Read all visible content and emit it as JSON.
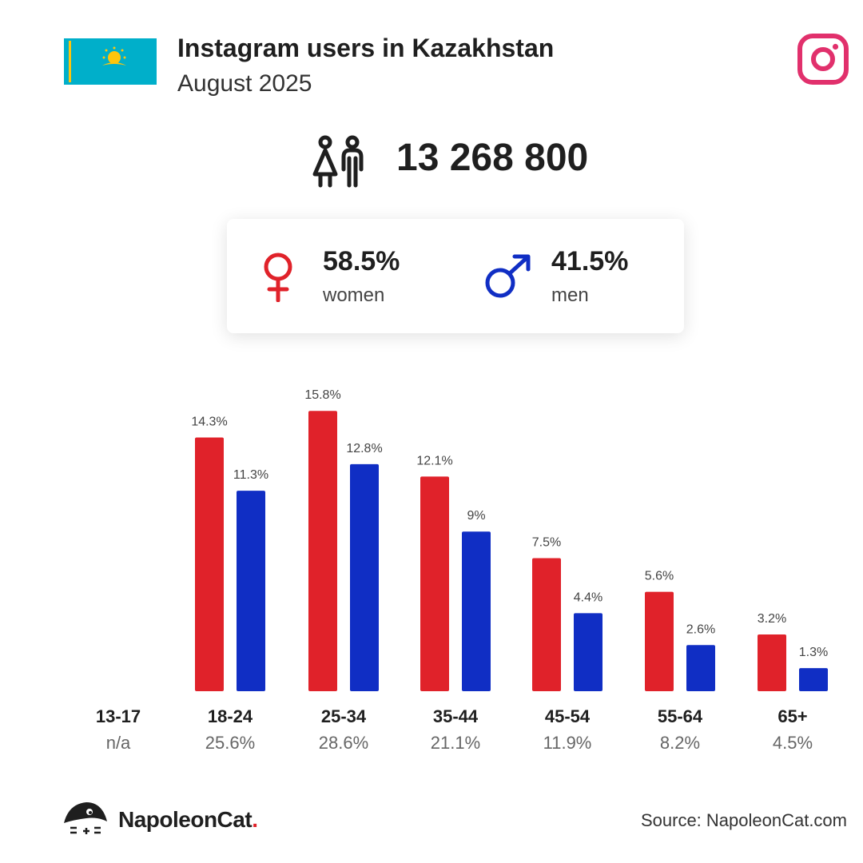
{
  "header": {
    "title": "Instagram users in Kazakhstan",
    "subtitle": "August 2025"
  },
  "total_users": "13 268 800",
  "gender": {
    "women_pct": "58.5%",
    "women_label": "women",
    "men_pct": "41.5%",
    "men_label": "men"
  },
  "colors": {
    "women": "#e0222a",
    "men": "#102ec4",
    "instagram": "#e1306c",
    "flag_blue": "#00afca",
    "flag_gold": "#fec50c"
  },
  "icons": [
    "kazakhstan-flag",
    "instagram-icon",
    "people-icon",
    "female-symbol-icon",
    "male-symbol-icon",
    "napoleoncat-logo-icon"
  ],
  "chart_data": {
    "type": "bar",
    "categories": [
      "13-17",
      "18-24",
      "25-34",
      "35-44",
      "45-54",
      "55-64",
      "65+"
    ],
    "category_totals": [
      "n/a",
      "25.6%",
      "28.6%",
      "21.1%",
      "11.9%",
      "8.2%",
      "4.5%"
    ],
    "series": [
      {
        "name": "women",
        "values": [
          null,
          14.3,
          15.8,
          12.1,
          7.5,
          5.6,
          3.2
        ],
        "labels": [
          "",
          "14.3%",
          "15.8%",
          "12.1%",
          "7.5%",
          "5.6%",
          "3.2%"
        ]
      },
      {
        "name": "men",
        "values": [
          null,
          11.3,
          12.8,
          9,
          4.4,
          2.6,
          1.3
        ],
        "labels": [
          "",
          "11.3%",
          "12.8%",
          "9%",
          "4.4%",
          "2.6%",
          "1.3%"
        ]
      }
    ],
    "ylim": [
      0,
      16
    ],
    "grid": false,
    "legend": "none"
  },
  "footer": {
    "brand": "NapoleonCat",
    "brand_dot": ".",
    "source": "Source: NapoleonCat.com"
  }
}
